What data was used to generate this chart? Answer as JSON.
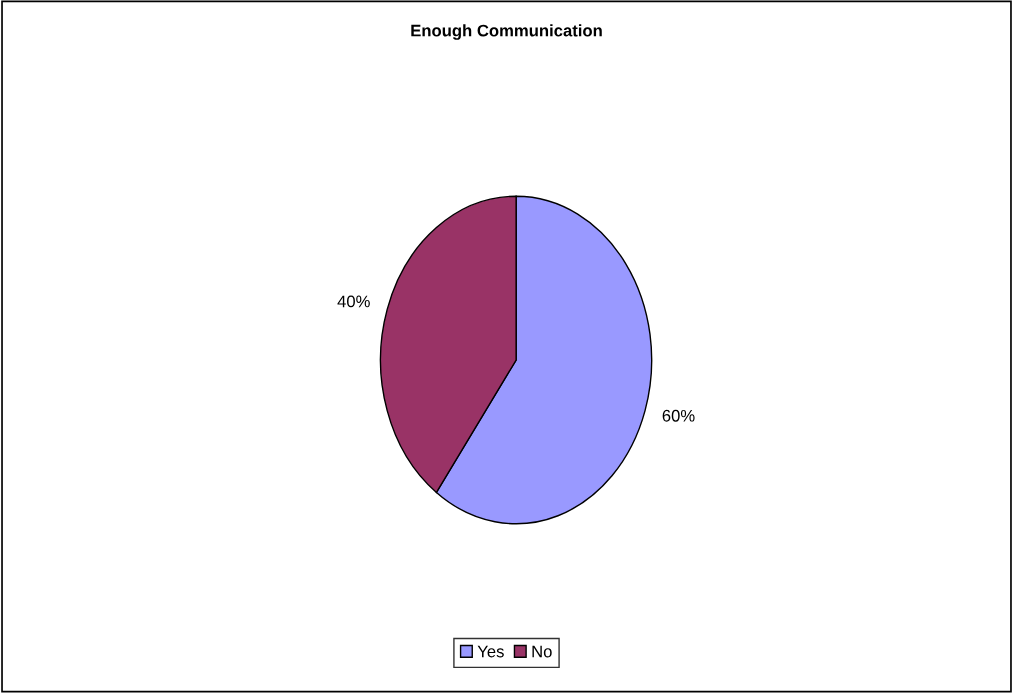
{
  "chart_data": {
    "type": "pie",
    "title": "Enough Communication",
    "categories": [
      "Yes",
      "No"
    ],
    "values": [
      60,
      40
    ],
    "colors": [
      "#9999ff",
      "#993366"
    ],
    "value_labels": [
      "60%",
      "40%"
    ],
    "legend": "bottom"
  }
}
